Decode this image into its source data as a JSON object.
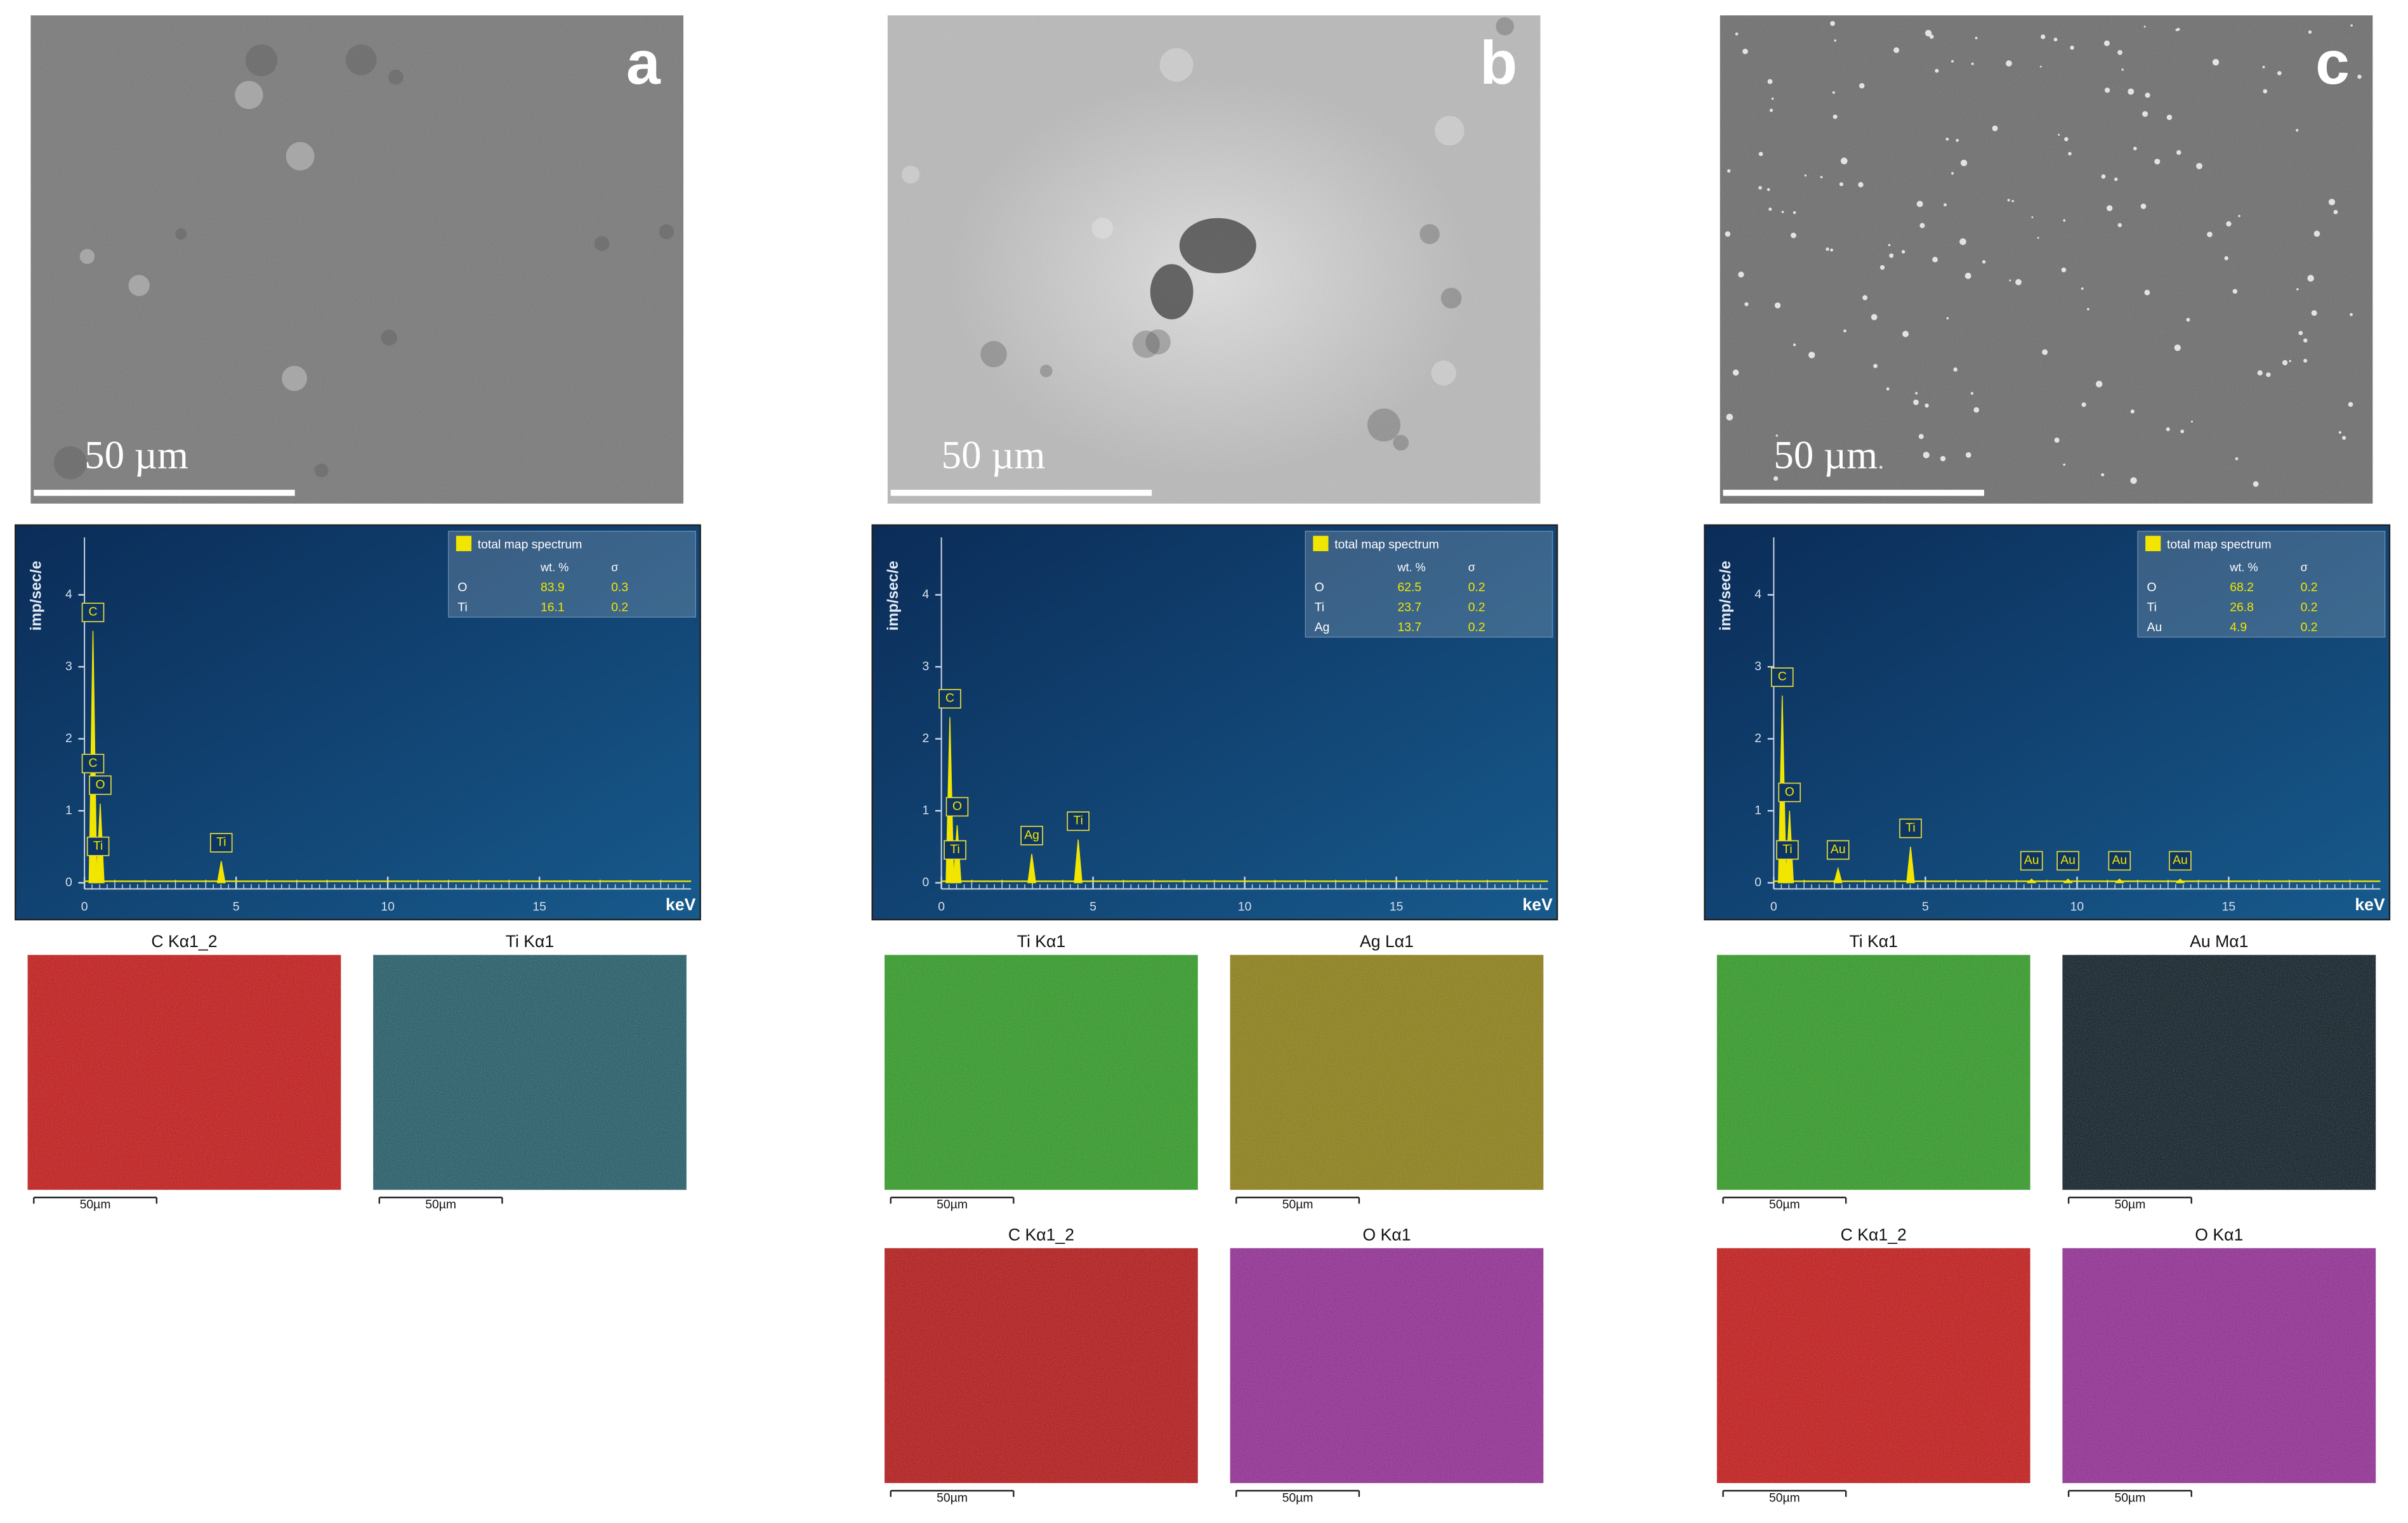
{
  "panels": [
    {
      "label": "a",
      "scale_bar": "50 µm",
      "sem_color": "#7b7b7b",
      "spectrum": {
        "y_axis": "imp/sec/e",
        "x_unit": "keV",
        "legend_title": "total map spectrum",
        "columns": [
          "wt. %",
          "σ"
        ],
        "rows": [
          [
            "O",
            83.9,
            0.3
          ],
          [
            "Ti",
            16.1,
            0.2
          ]
        ],
        "xlim": [
          0,
          20
        ],
        "xticks": [
          0,
          5,
          10,
          15
        ],
        "ylim": [
          0,
          4.5
        ],
        "yticks": [
          0,
          1,
          2,
          3,
          4
        ],
        "peaks": [
          {
            "label": "C",
            "kev": 0.28,
            "height": 3.5
          },
          {
            "label": "C",
            "kev": 0.28,
            "height": 1.4
          },
          {
            "label": "O",
            "kev": 0.52,
            "height": 1.1
          },
          {
            "label": "Ti",
            "kev": 0.45,
            "height": 0.25
          },
          {
            "label": "Ti",
            "kev": 4.51,
            "height": 0.3
          }
        ]
      },
      "maps": [
        {
          "title": "C Kα1_2",
          "scale": "50µm",
          "color": "#c51515"
        },
        {
          "title": "Ti Kα1",
          "scale": "50µm",
          "color": "#1f5a66"
        }
      ]
    },
    {
      "label": "b",
      "scale_bar": "50 µm",
      "sem_color": "#b9b9b9",
      "spectrum": {
        "y_axis": "imp/sec/e",
        "x_unit": "keV",
        "legend_title": "total map spectrum",
        "columns": [
          "wt. %",
          "σ"
        ],
        "rows": [
          [
            "O",
            62.5,
            0.2
          ],
          [
            "Ti",
            23.7,
            0.2
          ],
          [
            "Ag",
            13.7,
            0.2
          ]
        ],
        "xlim": [
          0,
          20
        ],
        "xticks": [
          0,
          5,
          10,
          15
        ],
        "ylim": [
          0,
          4.5
        ],
        "yticks": [
          0,
          1,
          2,
          3,
          4
        ],
        "peaks": [
          {
            "label": "C",
            "kev": 0.28,
            "height": 2.3
          },
          {
            "label": "O",
            "kev": 0.52,
            "height": 0.8
          },
          {
            "label": "Ti",
            "kev": 0.45,
            "height": 0.2
          },
          {
            "label": "Ag",
            "kev": 2.98,
            "height": 0.4
          },
          {
            "label": "Ti",
            "kev": 4.51,
            "height": 0.6
          }
        ]
      },
      "maps": [
        {
          "title": "Ti Kα1",
          "scale": "50µm",
          "color": "#2e9a22"
        },
        {
          "title": "Ag Lα1",
          "scale": "50µm",
          "color": "#8c7d12"
        },
        {
          "title": "C Kα1_2",
          "scale": "50µm",
          "color": "#b51414"
        },
        {
          "title": "O Kα1",
          "scale": "50µm",
          "color": "#922a94"
        }
      ]
    },
    {
      "label": "c",
      "scale_bar": "50 µm",
      "sem_color": "#707070",
      "spectrum": {
        "y_axis": "imp/sec/e",
        "x_unit": "keV",
        "legend_title": "total map spectrum",
        "columns": [
          "wt. %",
          "σ"
        ],
        "rows": [
          [
            "O",
            68.2,
            0.2
          ],
          [
            "Ti",
            26.8,
            0.2
          ],
          [
            "Au",
            4.9,
            0.2
          ]
        ],
        "xlim": [
          0,
          20
        ],
        "xticks": [
          0,
          5,
          10,
          15
        ],
        "ylim": [
          0,
          4.5
        ],
        "yticks": [
          0,
          1,
          2,
          3,
          4
        ],
        "peaks": [
          {
            "label": "C",
            "kev": 0.28,
            "height": 2.6
          },
          {
            "label": "O",
            "kev": 0.52,
            "height": 1.0
          },
          {
            "label": "Ti",
            "kev": 0.45,
            "height": 0.2
          },
          {
            "label": "Au",
            "kev": 2.12,
            "height": 0.2
          },
          {
            "label": "Ti",
            "kev": 4.51,
            "height": 0.5
          },
          {
            "label": "Au",
            "kev": 8.5,
            "height": 0.05
          },
          {
            "label": "Au",
            "kev": 9.7,
            "height": 0.05
          },
          {
            "label": "Au",
            "kev": 11.4,
            "height": 0.05
          },
          {
            "label": "Au",
            "kev": 13.4,
            "height": 0.05
          }
        ]
      },
      "maps": [
        {
          "title": "Ti Kα1",
          "scale": "50µm",
          "color": "#2e9a22"
        },
        {
          "title": "Au Mα1",
          "scale": "50µm",
          "color": "#0a1a22"
        },
        {
          "title": "C Kα1_2",
          "scale": "50µm",
          "color": "#c51515"
        },
        {
          "title": "O Kα1",
          "scale": "50µm",
          "color": "#922a94"
        }
      ]
    }
  ]
}
